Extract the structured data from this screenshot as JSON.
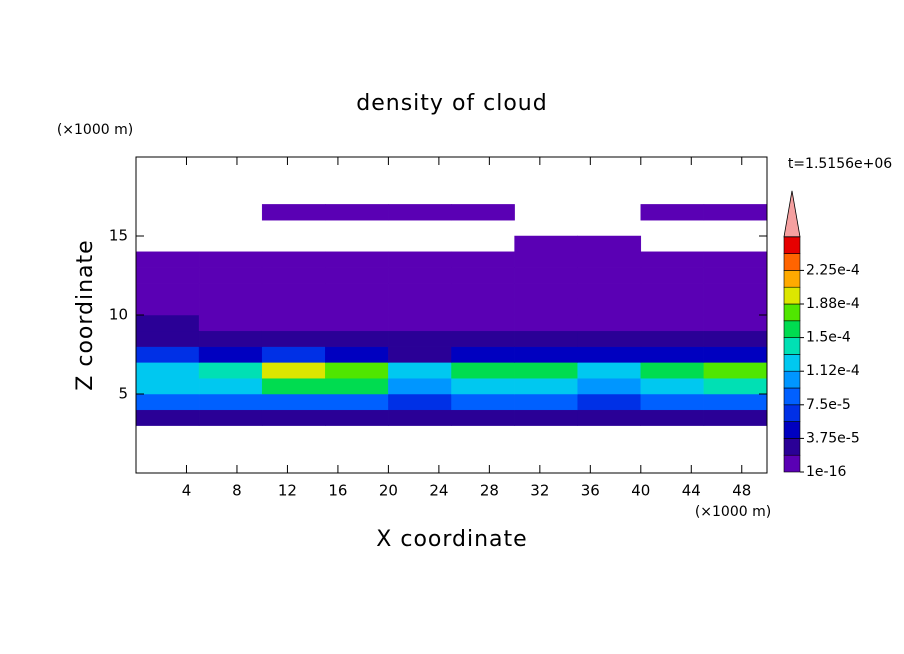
{
  "chart_data": {
    "type": "contour",
    "title": "density of cloud",
    "xlabel": "X coordinate",
    "ylabel": "Z coordinate",
    "x_unit": "(×1000 m)",
    "y_unit": "(×1000 m)",
    "annotation": "t=1.5156e+06",
    "xlim": [
      0,
      50
    ],
    "ylim": [
      0,
      20
    ],
    "xticks": [
      4,
      8,
      12,
      16,
      20,
      24,
      28,
      32,
      36,
      40,
      44,
      48
    ],
    "yticks": [
      5,
      10,
      15
    ],
    "x": [
      2.5,
      7.5,
      12.5,
      17.5,
      22.5,
      27.5,
      32.5,
      37.5,
      42.5,
      47.5
    ],
    "y": [
      3.5,
      4.5,
      5.5,
      6.5,
      7.5,
      8.5,
      9.5,
      10.5,
      11.5,
      12.5,
      13.5,
      14.5,
      15.5,
      16.5
    ],
    "z": [
      [
        3e-05,
        3e-05,
        3.5e-05,
        3.5e-05,
        3e-05,
        3e-05,
        3e-05,
        3e-05,
        3e-05,
        3e-05
      ],
      [
        8e-05,
        7.5e-05,
        8e-05,
        8e-05,
        7e-05,
        8e-05,
        8e-05,
        6e-05,
        8e-05,
        8e-05
      ],
      [
        0.00012,
        0.00012,
        0.00015,
        0.00015,
        0.00011,
        0.00013,
        0.00013,
        0.00011,
        0.00013,
        0.00014
      ],
      [
        0.00013,
        0.00014,
        0.0002,
        0.00018,
        0.00012,
        0.00015,
        0.00016,
        0.00013,
        0.00016,
        0.00018
      ],
      [
        6e-05,
        4e-05,
        6e-05,
        5e-05,
        3e-05,
        4e-05,
        4e-05,
        5e-05,
        4e-05,
        4e-05
      ],
      [
        3e-05,
        2e-05,
        2e-05,
        2e-05,
        2e-05,
        2e-05,
        2e-05,
        2.5e-05,
        2e-05,
        2e-05
      ],
      [
        2e-05,
        1.5e-05,
        1e-05,
        1e-05,
        1e-05,
        1e-05,
        1e-05,
        1.5e-05,
        1.5e-05,
        1.5e-05
      ],
      [
        1e-05,
        1e-05,
        1e-05,
        1e-05,
        1e-05,
        1e-05,
        1e-05,
        1e-05,
        1e-05,
        1e-05
      ],
      [
        8e-06,
        8e-06,
        8e-06,
        8e-06,
        8e-06,
        8e-06,
        8e-06,
        8e-06,
        8e-06,
        8e-06
      ],
      [
        5e-06,
        5e-06,
        5e-06,
        5e-06,
        5e-06,
        5e-06,
        5e-06,
        5e-06,
        5e-06,
        5e-06
      ],
      [
        3e-06,
        3e-06,
        3e-06,
        3e-06,
        3e-06,
        3e-06,
        3e-06,
        3e-06,
        3e-06,
        3e-06
      ],
      [
        null,
        null,
        null,
        null,
        null,
        null,
        2e-06,
        2e-06,
        null,
        null
      ],
      [
        null,
        null,
        null,
        null,
        null,
        null,
        null,
        null,
        null,
        null
      ],
      [
        null,
        null,
        2e-06,
        2e-06,
        2e-06,
        2e-06,
        null,
        null,
        2e-06,
        2e-06
      ]
    ],
    "levels": [
      1e-16,
      1.875e-05,
      3.75e-05,
      5.625e-05,
      7.5e-05,
      9.375e-05,
      0.0001125,
      0.00013125,
      0.00015,
      0.00016875,
      0.0001875,
      0.00020625,
      0.000225,
      0.00024375
    ],
    "colors": [
      "#5a00b4",
      "#2a0096",
      "#0000c0",
      "#0030e6",
      "#0060ff",
      "#0096ff",
      "#00c8f0",
      "#00e0b4",
      "#00dc50",
      "#50e600",
      "#dce600",
      "#ffaa00",
      "#ff6400",
      "#e60000"
    ],
    "extend_color": "#f5a0a0",
    "cbar_ticks": [
      {
        "value": 1e-16,
        "label": "1e-16"
      },
      {
        "value": 3.75e-05,
        "label": "3.75e-5"
      },
      {
        "value": 7.5e-05,
        "label": "7.5e-5"
      },
      {
        "value": 0.0001125,
        "label": "1.12e-4"
      },
      {
        "value": 0.00015,
        "label": "1.5e-4"
      },
      {
        "value": 0.0001875,
        "label": "1.88e-4"
      },
      {
        "value": 0.000225,
        "label": "2.25e-4"
      }
    ]
  }
}
